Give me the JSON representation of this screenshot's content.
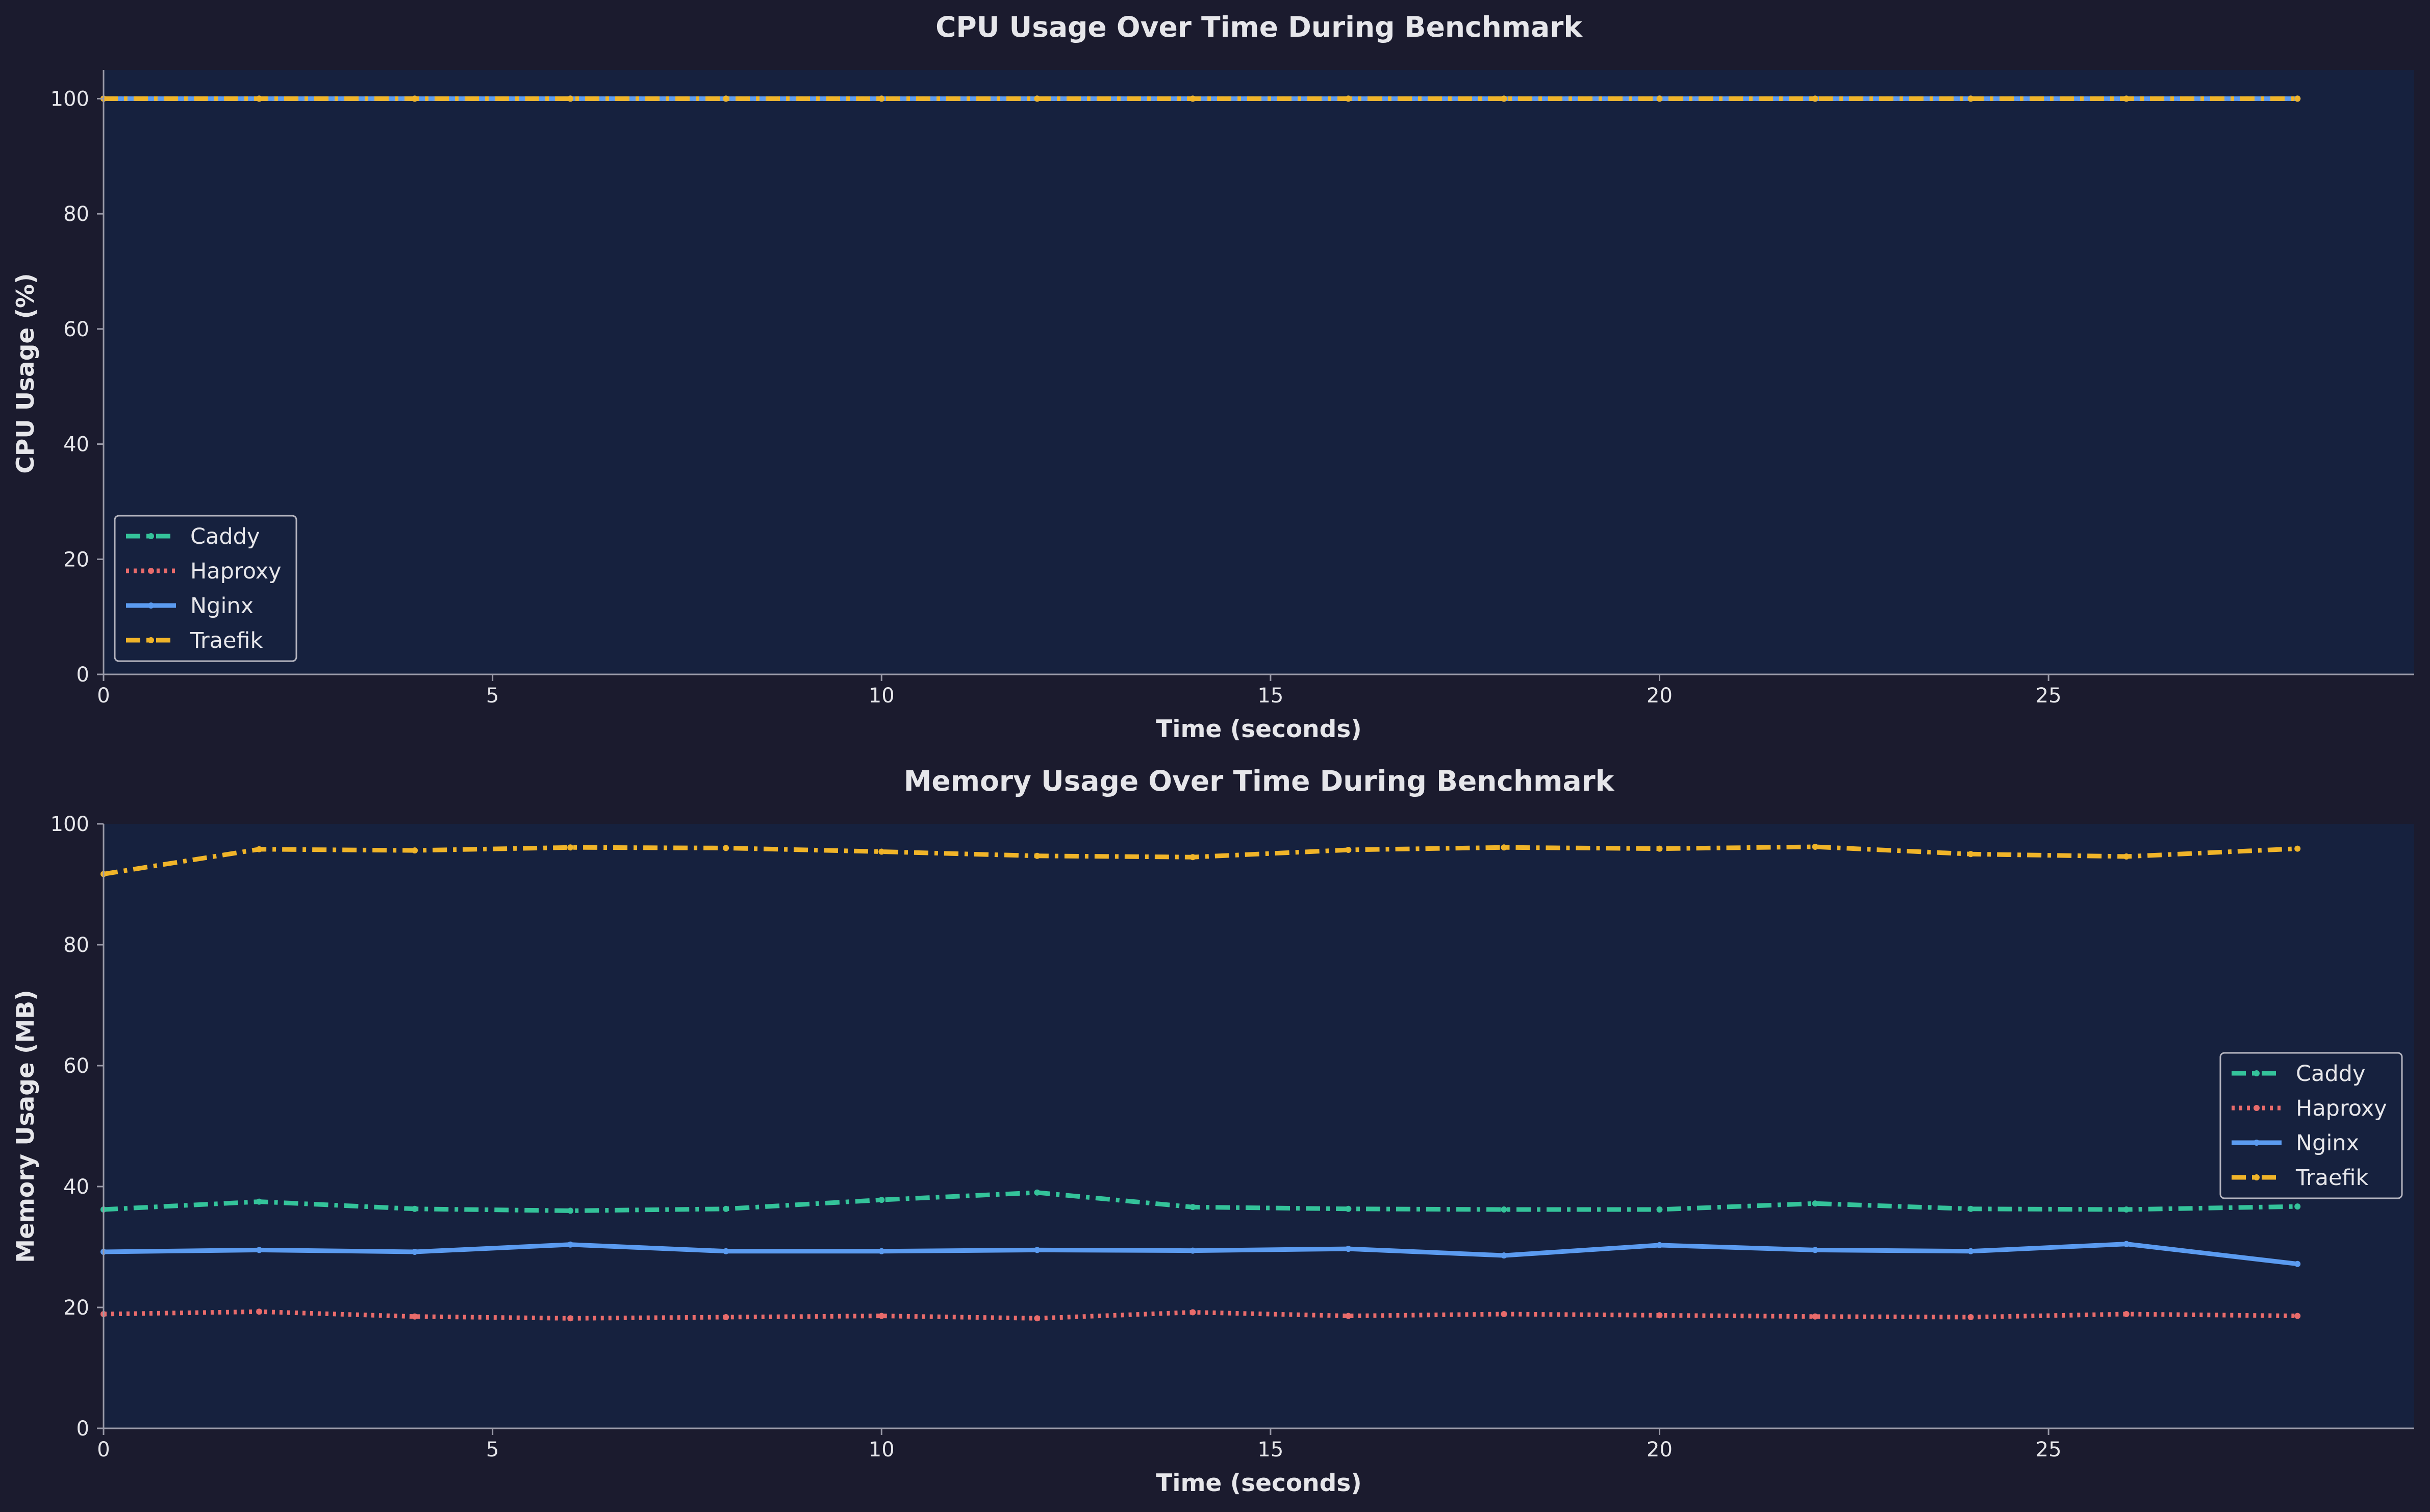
{
  "chart_data": [
    {
      "type": "line",
      "title": "CPU Usage Over Time During Benchmark",
      "xlabel": "Time (seconds)",
      "ylabel": "CPU Usage (%)",
      "xlim": [
        0,
        29.7
      ],
      "ylim": [
        0,
        105
      ],
      "xticks": [
        0,
        5,
        10,
        15,
        20,
        25
      ],
      "yticks": [
        0,
        20,
        40,
        60,
        80,
        100
      ],
      "legend": "lower-left",
      "grid": false,
      "x": [
        0,
        2,
        4,
        6,
        8,
        10,
        12,
        14,
        16,
        18,
        20,
        22,
        24,
        26,
        28.2
      ],
      "series": [
        {
          "name": "Caddy",
          "color": "#34c39a",
          "dash": "dash-dot",
          "values": [
            100,
            100,
            100,
            100,
            100,
            100,
            100,
            100,
            100,
            100,
            100,
            100,
            100,
            100,
            100
          ]
        },
        {
          "name": "Haproxy",
          "color": "#e86b6b",
          "dash": "dotted",
          "values": [
            100,
            100,
            100,
            100,
            100,
            100,
            100,
            100,
            100,
            100,
            100,
            100,
            100,
            100,
            100
          ]
        },
        {
          "name": "Nginx",
          "color": "#5b9bf0",
          "dash": "solid",
          "values": [
            100,
            100,
            100,
            100,
            100,
            100,
            100,
            100,
            100,
            100,
            100,
            100,
            100,
            100,
            100
          ]
        },
        {
          "name": "Traefik",
          "color": "#f0b429",
          "dash": "dash-dot",
          "values": [
            100,
            100,
            100,
            100,
            100,
            100,
            100,
            100,
            100,
            100,
            100,
            100,
            100,
            100,
            100
          ]
        }
      ]
    },
    {
      "type": "line",
      "title": "Memory Usage Over Time During Benchmark",
      "xlabel": "Time (seconds)",
      "ylabel": "Memory Usage (MB)",
      "xlim": [
        0,
        29.7
      ],
      "ylim": [
        0,
        100
      ],
      "xticks": [
        0,
        5,
        10,
        15,
        20,
        25
      ],
      "yticks": [
        0,
        20,
        40,
        60,
        80,
        100
      ],
      "legend": "center-right",
      "grid": false,
      "x": [
        0,
        2,
        4,
        6,
        8,
        10,
        12,
        14,
        16,
        18,
        20,
        22,
        24,
        26,
        28.2
      ],
      "series": [
        {
          "name": "Caddy",
          "color": "#34c39a",
          "dash": "dash-dot",
          "values": [
            36.2,
            37.5,
            36.3,
            36.0,
            36.3,
            37.8,
            39.0,
            36.6,
            36.3,
            36.2,
            36.2,
            37.2,
            36.3,
            36.2,
            36.7
          ]
        },
        {
          "name": "Haproxy",
          "color": "#e86b6b",
          "dash": "dotted",
          "values": [
            18.9,
            19.3,
            18.5,
            18.2,
            18.4,
            18.6,
            18.2,
            19.2,
            18.6,
            18.9,
            18.7,
            18.5,
            18.4,
            18.9,
            18.6
          ]
        },
        {
          "name": "Nginx",
          "color": "#5b9bf0",
          "dash": "solid",
          "values": [
            29.2,
            29.5,
            29.2,
            30.4,
            29.3,
            29.3,
            29.5,
            29.4,
            29.7,
            28.6,
            30.3,
            29.5,
            29.3,
            30.5,
            27.2
          ]
        },
        {
          "name": "Traefik",
          "color": "#f0b429",
          "dash": "dash-dot",
          "values": [
            91.7,
            95.8,
            95.6,
            96.1,
            96.0,
            95.4,
            94.7,
            94.5,
            95.7,
            96.1,
            95.9,
            96.2,
            95.0,
            94.6,
            95.9
          ]
        }
      ]
    }
  ]
}
